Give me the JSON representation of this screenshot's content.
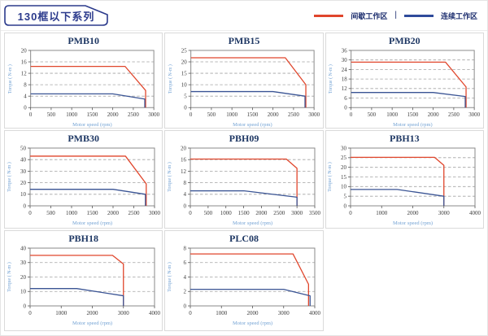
{
  "header": {
    "title": "130框以下系列",
    "legend": [
      {
        "label": "间歇工作区",
        "color": "#e0462c"
      },
      {
        "label": "连续工作区",
        "color": "#2f4b9b"
      }
    ],
    "legend_separator": "|"
  },
  "colors": {
    "accent_navy": "#2b3a8c",
    "chart_title": "#1f3864",
    "tick_label": "#3d3d3d",
    "axis_title": "#74a3d4",
    "gridline": "#a3a3a3",
    "plot_frame": "#8a8a8a",
    "panel_border": "#dadada",
    "intermittent_line": "#e0462c",
    "continuous_line": "#3a5494"
  },
  "chart_data": [
    {
      "type": "line",
      "title": "PMB10",
      "xlabel": "Motor speed (rpm)",
      "ylabel": "Torque ( N-m )",
      "xlim": [
        0,
        3000
      ],
      "ylim": [
        0,
        20
      ],
      "xticks": [
        0,
        500,
        1000,
        1500,
        2000,
        2500,
        3000
      ],
      "yticks": [
        0,
        4,
        8,
        12,
        16,
        20
      ],
      "grid": "horizontal-dashed",
      "legend_position": "none",
      "series": [
        {
          "name": "间歇工作区",
          "color": "#e0462c",
          "points": [
            [
              0,
              14.4
            ],
            [
              2300,
              14.4
            ],
            [
              2800,
              6
            ],
            [
              2800,
              0
            ]
          ]
        },
        {
          "name": "连续工作区",
          "color": "#3a5494",
          "points": [
            [
              0,
              4.8
            ],
            [
              2000,
              4.8
            ],
            [
              2780,
              3
            ],
            [
              2780,
              0
            ]
          ]
        }
      ]
    },
    {
      "type": "line",
      "title": "PMB15",
      "xlabel": "Motor speed (rpm)",
      "ylabel": "Torque ( N-m )",
      "xlim": [
        0,
        3000
      ],
      "ylim": [
        0,
        25
      ],
      "xticks": [
        0,
        500,
        1000,
        1500,
        2000,
        2500,
        3000
      ],
      "yticks": [
        0,
        5,
        10,
        15,
        20,
        25
      ],
      "grid": "horizontal-dashed",
      "legend_position": "none",
      "series": [
        {
          "name": "间歇工作区",
          "color": "#e0462c",
          "points": [
            [
              0,
              21.8
            ],
            [
              2300,
              21.8
            ],
            [
              2800,
              10
            ],
            [
              2800,
              0
            ]
          ]
        },
        {
          "name": "连续工作区",
          "color": "#3a5494",
          "points": [
            [
              0,
              7
            ],
            [
              2000,
              7
            ],
            [
              2780,
              5
            ],
            [
              2780,
              0
            ]
          ]
        }
      ]
    },
    {
      "type": "line",
      "title": "PMB20",
      "xlabel": "Motor speed (rpm)",
      "ylabel": "Torque ( N-m )",
      "xlim": [
        0,
        3000
      ],
      "ylim": [
        0,
        36
      ],
      "xticks": [
        0,
        500,
        1000,
        1500,
        2000,
        2500,
        3000
      ],
      "yticks": [
        0,
        6,
        12,
        18,
        24,
        30,
        36
      ],
      "grid": "horizontal-dashed",
      "legend_position": "none",
      "series": [
        {
          "name": "间歇工作区",
          "color": "#e0462c",
          "points": [
            [
              0,
              28.6
            ],
            [
              2300,
              28.6
            ],
            [
              2800,
              13
            ],
            [
              2800,
              0
            ]
          ]
        },
        {
          "name": "连续工作区",
          "color": "#3a5494",
          "points": [
            [
              0,
              9.5
            ],
            [
              2000,
              9.5
            ],
            [
              2780,
              7
            ],
            [
              2780,
              0
            ]
          ]
        }
      ]
    },
    {
      "type": "line",
      "title": "PMB30",
      "xlabel": "Motor speed (rpm)",
      "ylabel": "Torque ( N-m )",
      "xlim": [
        0,
        3000
      ],
      "ylim": [
        0,
        50
      ],
      "xticks": [
        0,
        500,
        1000,
        1500,
        2000,
        2500,
        3000
      ],
      "yticks": [
        0,
        10,
        20,
        30,
        40,
        50
      ],
      "grid": "horizontal-dashed",
      "legend_position": "none",
      "series": [
        {
          "name": "间歇工作区",
          "color": "#e0462c",
          "points": [
            [
              0,
              43
            ],
            [
              2300,
              43
            ],
            [
              2800,
              19
            ],
            [
              2800,
              0
            ]
          ]
        },
        {
          "name": "连续工作区",
          "color": "#3a5494",
          "points": [
            [
              0,
              14.3
            ],
            [
              2000,
              14.3
            ],
            [
              2780,
              10
            ],
            [
              2780,
              0
            ]
          ]
        }
      ]
    },
    {
      "type": "line",
      "title": "PBH09",
      "xlabel": "Motor speed (rpm)",
      "ylabel": "Torque ( N-m )",
      "xlim": [
        0,
        3500
      ],
      "ylim": [
        0,
        20
      ],
      "xticks": [
        0,
        500,
        1000,
        1500,
        2000,
        2500,
        3000,
        3500
      ],
      "yticks": [
        0,
        4,
        8,
        12,
        16,
        20
      ],
      "grid": "horizontal-dashed",
      "legend_position": "none",
      "series": [
        {
          "name": "间歇工作区",
          "color": "#e0462c",
          "points": [
            [
              0,
              16.2
            ],
            [
              2700,
              16.2
            ],
            [
              3000,
              13
            ],
            [
              3000,
              0
            ]
          ]
        },
        {
          "name": "连续工作区",
          "color": "#3a5494",
          "points": [
            [
              0,
              5.2
            ],
            [
              1500,
              5.2
            ],
            [
              3000,
              3
            ],
            [
              3000,
              0
            ]
          ]
        }
      ]
    },
    {
      "type": "line",
      "title": "PBH13",
      "xlabel": "Motor speed (rpm)",
      "ylabel": "Torque ( N-m )",
      "xlim": [
        0,
        4000
      ],
      "ylim": [
        0,
        30
      ],
      "xticks": [
        0,
        1000,
        2000,
        3000,
        4000
      ],
      "yticks": [
        0,
        5,
        10,
        15,
        20,
        25,
        30
      ],
      "grid": "horizontal-dashed",
      "legend_position": "none",
      "series": [
        {
          "name": "间歇工作区",
          "color": "#e0462c",
          "points": [
            [
              0,
              25.2
            ],
            [
              2700,
              25.2
            ],
            [
              3000,
              21
            ],
            [
              3000,
              0
            ]
          ]
        },
        {
          "name": "连续工作区",
          "color": "#3a5494",
          "points": [
            [
              0,
              8.5
            ],
            [
              1500,
              8.5
            ],
            [
              3000,
              5
            ],
            [
              3000,
              0
            ]
          ]
        }
      ]
    },
    {
      "type": "line",
      "title": "PBH18",
      "xlabel": "Motor speed (rpm)",
      "ylabel": "Torque ( N-m )",
      "xlim": [
        0,
        4000
      ],
      "ylim": [
        0,
        40
      ],
      "xticks": [
        0,
        1000,
        2000,
        3000,
        4000
      ],
      "yticks": [
        0,
        10,
        20,
        30,
        40
      ],
      "grid": "horizontal-dashed",
      "legend_position": "none",
      "series": [
        {
          "name": "间歇工作区",
          "color": "#e0462c",
          "points": [
            [
              0,
              35
            ],
            [
              2650,
              35
            ],
            [
              3000,
              29
            ],
            [
              3000,
              0
            ]
          ]
        },
        {
          "name": "连续工作区",
          "color": "#3a5494",
          "points": [
            [
              0,
              12
            ],
            [
              1500,
              12
            ],
            [
              3000,
              7
            ],
            [
              3000,
              0
            ]
          ]
        }
      ]
    },
    {
      "type": "line",
      "title": "PLC08",
      "xlabel": "Motor speed (rpm)",
      "ylabel": "Torque ( N-m )",
      "xlim": [
        0,
        4000
      ],
      "ylim": [
        0,
        8
      ],
      "xticks": [
        0,
        1000,
        2000,
        3000,
        4000
      ],
      "yticks": [
        0,
        2,
        4,
        6,
        8
      ],
      "grid": "horizontal-dashed",
      "legend_position": "none",
      "series": [
        {
          "name": "间歇工作区",
          "color": "#e0462c",
          "points": [
            [
              0,
              7.2
            ],
            [
              3300,
              7.2
            ],
            [
              3800,
              3
            ],
            [
              3800,
              0
            ]
          ]
        },
        {
          "name": "连续工作区",
          "color": "#3a5494",
          "points": [
            [
              0,
              2.3
            ],
            [
              3000,
              2.3
            ],
            [
              3850,
              1.4
            ],
            [
              3850,
              0
            ]
          ]
        }
      ]
    }
  ]
}
